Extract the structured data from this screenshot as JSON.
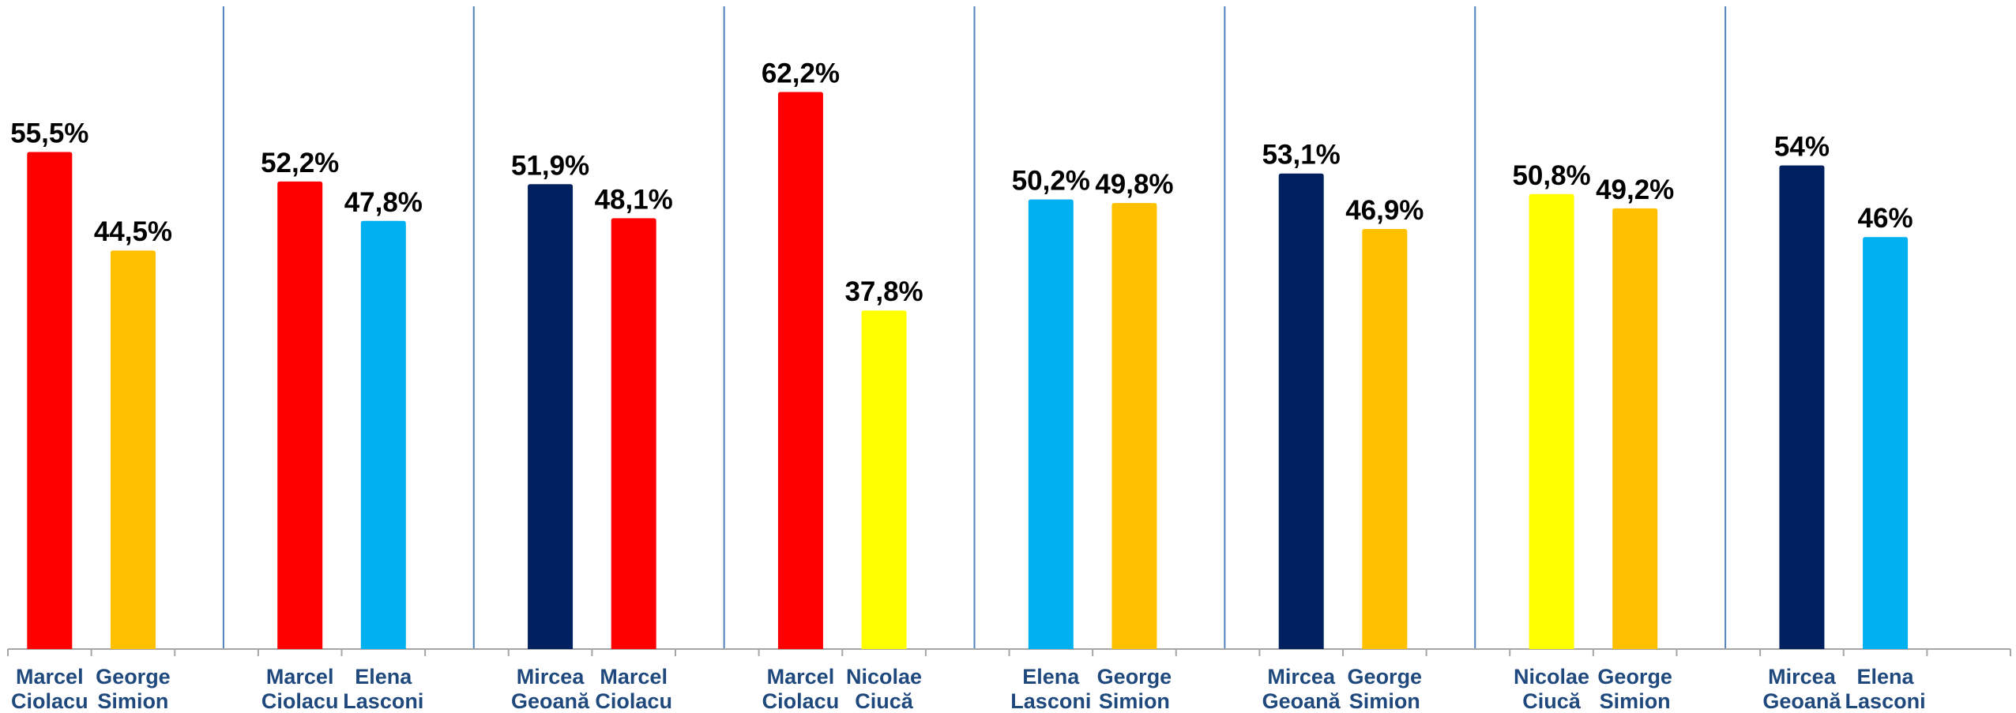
{
  "chart_data": {
    "type": "bar",
    "ylim": [
      0,
      70
    ],
    "grid": false,
    "legend": "none",
    "axis_color": "#A6A6A6",
    "separator_color": "#4F81BD",
    "groups": [
      {
        "bars": [
          {
            "name": [
              "Marcel",
              "Ciolacu"
            ],
            "value": 55.5,
            "label": "55,5%",
            "color": "#FF0000"
          },
          {
            "name": [
              "George",
              "Simion"
            ],
            "value": 44.5,
            "label": "44,5%",
            "color": "#FFC000"
          }
        ]
      },
      {
        "bars": [
          {
            "name": [
              "Marcel",
              "Ciolacu"
            ],
            "value": 52.2,
            "label": "52,2%",
            "color": "#FF0000"
          },
          {
            "name": [
              "Elena",
              "Lasconi"
            ],
            "value": 47.8,
            "label": "47,8%",
            "color": "#00B0F0"
          }
        ]
      },
      {
        "bars": [
          {
            "name": [
              "Mircea",
              "Geoană"
            ],
            "value": 51.9,
            "label": "51,9%",
            "color": "#002060"
          },
          {
            "name": [
              "Marcel",
              "Ciolacu"
            ],
            "value": 48.1,
            "label": "48,1%",
            "color": "#FF0000"
          }
        ]
      },
      {
        "bars": [
          {
            "name": [
              "Marcel",
              "Ciolacu"
            ],
            "value": 62.2,
            "label": "62,2%",
            "color": "#FF0000"
          },
          {
            "name": [
              "Nicolae",
              "Ciucă"
            ],
            "value": 37.8,
            "label": "37,8%",
            "color": "#FFFF00"
          }
        ]
      },
      {
        "bars": [
          {
            "name": [
              "Elena",
              "Lasconi"
            ],
            "value": 50.2,
            "label": "50,2%",
            "color": "#00B0F0"
          },
          {
            "name": [
              "George",
              "Simion"
            ],
            "value": 49.8,
            "label": "49,8%",
            "color": "#FFC000"
          }
        ]
      },
      {
        "bars": [
          {
            "name": [
              "Mircea",
              "Geoană"
            ],
            "value": 53.1,
            "label": "53,1%",
            "color": "#002060"
          },
          {
            "name": [
              "George",
              "Simion"
            ],
            "value": 46.9,
            "label": "46,9%",
            "color": "#FFC000"
          }
        ]
      },
      {
        "bars": [
          {
            "name": [
              "Nicolae",
              "Ciucă"
            ],
            "value": 50.8,
            "label": "50,8%",
            "color": "#FFFF00"
          },
          {
            "name": [
              "George",
              "Simion"
            ],
            "value": 49.2,
            "label": "49,2%",
            "color": "#FFC000"
          }
        ]
      },
      {
        "bars": [
          {
            "name": [
              "Mircea",
              "Geoană"
            ],
            "value": 54,
            "label": "54%",
            "color": "#002060"
          },
          {
            "name": [
              "Elena",
              "Lasconi"
            ],
            "value": 46,
            "label": "46%",
            "color": "#00B0F0"
          }
        ]
      }
    ]
  }
}
